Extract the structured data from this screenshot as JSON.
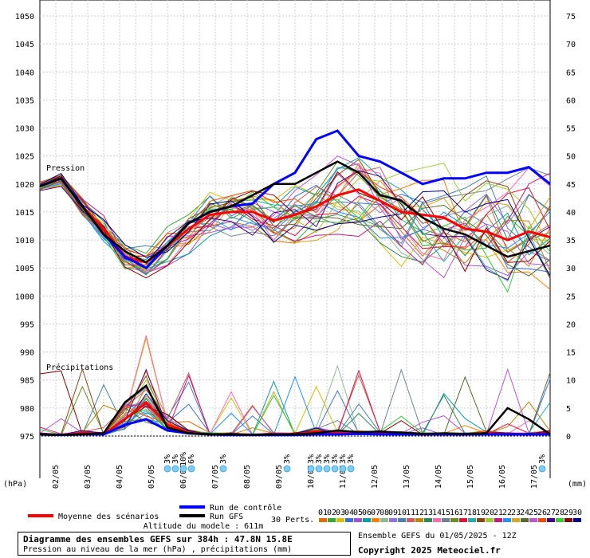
{
  "chart_data": {
    "type": "line",
    "title": "Diagramme des ensembles GEFS sur 384h : 47.8N 15.8E",
    "subtitle": "Pression au niveau de la mer (hPa) , précipitations (mm)",
    "ylabel_left": "(hPa)",
    "ylabel_right": "(mm)",
    "label_pression": "Pression",
    "label_precip": "Précipitations",
    "ylim_left": [
      975,
      1050
    ],
    "ylim_right": [
      0,
      75
    ],
    "left_ticks": [
      "1050",
      "1045",
      "1040",
      "1035",
      "1030",
      "1025",
      "1020",
      "1015",
      "1010",
      "1005",
      "1000",
      "995",
      "990",
      "985",
      "980",
      "975"
    ],
    "right_ticks": [
      "75",
      "70",
      "65",
      "60",
      "55",
      "50",
      "45",
      "40",
      "35",
      "30",
      "25",
      "20",
      "15",
      "10",
      "5",
      "0"
    ],
    "x_labels": [
      "02/05",
      "03/05",
      "04/05",
      "05/05",
      "06/05",
      "07/05",
      "08/05",
      "09/05",
      "10/05",
      "11/05",
      "12/05",
      "13/05",
      "14/05",
      "15/05",
      "16/05",
      "17/05"
    ],
    "x_hours": [
      12,
      36,
      60,
      84,
      108,
      132,
      156,
      180,
      204,
      228,
      252,
      276,
      300,
      324,
      348,
      372
    ],
    "x_range_hours": [
      0,
      384
    ],
    "snow_markers": [
      {
        "hour": 96,
        "label": "3%"
      },
      {
        "hour": 102,
        "label": "3%"
      },
      {
        "hour": 108,
        "label": "10%"
      },
      {
        "hour": 114,
        "label": "6%"
      },
      {
        "hour": 138,
        "label": "3%"
      },
      {
        "hour": 186,
        "label": "3%"
      },
      {
        "hour": 204,
        "label": "3%"
      },
      {
        "hour": 210,
        "label": "3%"
      },
      {
        "hour": 216,
        "label": "3%"
      },
      {
        "hour": 222,
        "label": "3%"
      },
      {
        "hour": 228,
        "label": "3%"
      },
      {
        "hour": 234,
        "label": "3%"
      },
      {
        "hour": 378,
        "label": "3%"
      }
    ],
    "series": [
      {
        "name": "Moyenne des scénarios",
        "color": "#ff0000",
        "pressure": [
          1019.6,
          1021,
          1016,
          1012,
          1007,
          1006,
          1009,
          1012,
          1014.5,
          1015,
          1015,
          1013.5,
          1014.5,
          1016,
          1018,
          1019,
          1017,
          1015,
          1014.5,
          1014,
          1012,
          1011.5,
          1010,
          1011.5,
          1010.5
        ],
        "precip": [
          0.3,
          0.2,
          0.5,
          0.3,
          3,
          6,
          2,
          0.6,
          0.3,
          0.3,
          0.2,
          0.3,
          0.3,
          0.8,
          0.5,
          0.5,
          0.5,
          0.4,
          0.3,
          0.3,
          0.3,
          0.5,
          0.3,
          0.3,
          0.5
        ]
      },
      {
        "name": "Run de contrôle",
        "color": "#0000ff",
        "pressure": [
          1019.6,
          1021,
          1016,
          1011,
          1007,
          1005,
          1009,
          1013,
          1015,
          1016,
          1016.5,
          1020,
          1022,
          1028,
          1029.5,
          1025,
          1024,
          1022,
          1020,
          1021,
          1021,
          1022,
          1022,
          1023,
          1020
        ],
        "precip": [
          0.3,
          0.2,
          0.3,
          0.3,
          2,
          3,
          1,
          0.5,
          0.3,
          0.2,
          0.2,
          0.2,
          0.2,
          0.3,
          0.3,
          0.4,
          0.3,
          0.3,
          0.3,
          0.3,
          0.3,
          0.3,
          0.3,
          0.3,
          0.3
        ]
      },
      {
        "name": "Run GFS",
        "color": "#000000",
        "pressure": [
          1019.6,
          1021,
          1016,
          1011,
          1008,
          1006,
          1009,
          1013,
          1015,
          1016,
          1018,
          1020,
          1020,
          1022,
          1024,
          1022,
          1018,
          1017,
          1014,
          1012,
          1011,
          1009,
          1007,
          1008,
          1009
        ],
        "precip": [
          0.3,
          0.2,
          0.3,
          0.5,
          6,
          9,
          1.5,
          0.5,
          0.3,
          0.3,
          0.2,
          0.3,
          0.3,
          0.5,
          1,
          0.7,
          0.8,
          0.6,
          0.4,
          0.5,
          0.4,
          0.5,
          5,
          3,
          0.3
        ]
      }
    ],
    "legend": {
      "mean": "Moyenne des scénarios",
      "control": "Run de contrôle",
      "gfs": "Run GFS",
      "perts": "30 Perts.",
      "pert_numbers": [
        "01",
        "02",
        "03",
        "04",
        "05",
        "06",
        "07",
        "08",
        "09",
        "10",
        "11",
        "12",
        "13",
        "14",
        "15",
        "16",
        "17",
        "18",
        "19",
        "20",
        "21",
        "22",
        "23",
        "24",
        "25",
        "26",
        "27",
        "28",
        "29",
        "30"
      ]
    },
    "altitude": "Altitude du modele : 611m",
    "run_info": "Ensemble GEFS du 01/05/2025 - 12Z",
    "copyright": "Copyright 2025 Meteociel.fr",
    "grid": true
  }
}
